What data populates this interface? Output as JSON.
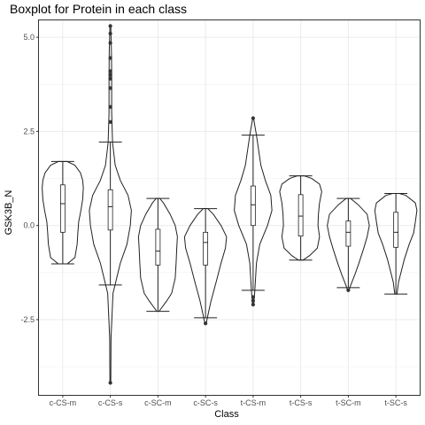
{
  "chart_data": {
    "type": "violin+boxplot",
    "title": "Boxplot for Protein in each class",
    "xlabel": "Class",
    "ylabel": "GSK3B_N",
    "categories": [
      "c-CS-m",
      "c-CS-s",
      "c-SC-m",
      "c-SC-s",
      "t-CS-m",
      "t-CS-s",
      "t-SC-m",
      "t-SC-s"
    ],
    "ylim": [
      -4.5,
      5.45
    ],
    "yticks": [
      -2.5,
      0.0,
      2.5,
      5.0
    ],
    "ytick_labels": [
      "-2.5",
      "0.0",
      "2.5",
      "5.0"
    ],
    "grid": true,
    "groups": [
      {
        "name": "c-CS-m",
        "whisker_min": -1.02,
        "q1": -0.18,
        "median": 0.58,
        "q3": 1.08,
        "whisker_max": 1.7,
        "outliers": [],
        "density": [
          [
            -1.02,
            0.2
          ],
          [
            -0.85,
            0.55
          ],
          [
            -0.5,
            0.65
          ],
          [
            -0.2,
            0.68
          ],
          [
            0.1,
            0.72
          ],
          [
            0.4,
            0.82
          ],
          [
            0.7,
            0.9
          ],
          [
            1.0,
            0.93
          ],
          [
            1.2,
            0.9
          ],
          [
            1.4,
            0.8
          ],
          [
            1.6,
            0.55
          ],
          [
            1.7,
            0.2
          ]
        ]
      },
      {
        "name": "c-CS-s",
        "whisker_min": -1.58,
        "q1": -0.12,
        "median": 0.5,
        "q3": 0.95,
        "whisker_max": 2.22,
        "outliers": [
          -4.18,
          2.75,
          3.15,
          3.65,
          3.9,
          4.0,
          4.1,
          4.45,
          4.85,
          5.1,
          5.3
        ],
        "density": [
          [
            -4.18,
            0.02
          ],
          [
            -3.0,
            0.03
          ],
          [
            -1.8,
            0.12
          ],
          [
            -1.0,
            0.45
          ],
          [
            -0.5,
            0.75
          ],
          [
            0.0,
            0.9
          ],
          [
            0.4,
            0.95
          ],
          [
            0.8,
            0.8
          ],
          [
            1.2,
            0.45
          ],
          [
            1.6,
            0.22
          ],
          [
            2.2,
            0.1
          ],
          [
            3.0,
            0.06
          ],
          [
            4.0,
            0.06
          ],
          [
            4.6,
            0.05
          ],
          [
            5.3,
            0.02
          ]
        ]
      },
      {
        "name": "c-SC-m",
        "whisker_min": -2.28,
        "q1": -1.05,
        "median": -0.68,
        "q3": -0.1,
        "whisker_max": 0.72,
        "outliers": [],
        "density": [
          [
            -2.28,
            0.05
          ],
          [
            -2.0,
            0.4
          ],
          [
            -1.8,
            0.62
          ],
          [
            -1.4,
            0.78
          ],
          [
            -1.0,
            0.82
          ],
          [
            -0.6,
            0.85
          ],
          [
            -0.3,
            0.88
          ],
          [
            0.0,
            0.78
          ],
          [
            0.3,
            0.55
          ],
          [
            0.6,
            0.25
          ],
          [
            0.72,
            0.08
          ]
        ]
      },
      {
        "name": "c-SC-s",
        "whisker_min": -2.45,
        "q1": -1.05,
        "median": -0.45,
        "q3": -0.18,
        "whisker_max": 0.45,
        "outliers": [
          -2.6
        ],
        "density": [
          [
            -2.6,
            0.03
          ],
          [
            -2.4,
            0.1
          ],
          [
            -2.0,
            0.25
          ],
          [
            -1.5,
            0.48
          ],
          [
            -1.0,
            0.7
          ],
          [
            -0.6,
            0.9
          ],
          [
            -0.3,
            0.95
          ],
          [
            0.0,
            0.7
          ],
          [
            0.3,
            0.35
          ],
          [
            0.45,
            0.1
          ]
        ]
      },
      {
        "name": "t-CS-m",
        "whisker_min": -1.72,
        "q1": 0.0,
        "median": 0.55,
        "q3": 1.05,
        "whisker_max": 2.4,
        "outliers": [
          -1.9,
          -2.0,
          -2.1,
          2.85
        ],
        "density": [
          [
            -2.1,
            0.03
          ],
          [
            -1.7,
            0.08
          ],
          [
            -1.0,
            0.15
          ],
          [
            -0.5,
            0.3
          ],
          [
            0.0,
            0.65
          ],
          [
            0.4,
            0.85
          ],
          [
            0.8,
            0.8
          ],
          [
            1.2,
            0.55
          ],
          [
            1.6,
            0.35
          ],
          [
            2.0,
            0.25
          ],
          [
            2.4,
            0.15
          ],
          [
            2.85,
            0.02
          ]
        ]
      },
      {
        "name": "t-CS-s",
        "whisker_min": -0.92,
        "q1": -0.28,
        "median": 0.25,
        "q3": 0.82,
        "whisker_max": 1.32,
        "outliers": [],
        "density": [
          [
            -0.92,
            0.1
          ],
          [
            -0.8,
            0.4
          ],
          [
            -0.6,
            0.75
          ],
          [
            -0.3,
            0.85
          ],
          [
            0.0,
            0.78
          ],
          [
            0.3,
            0.8
          ],
          [
            0.6,
            0.85
          ],
          [
            0.9,
            0.95
          ],
          [
            1.1,
            0.85
          ],
          [
            1.25,
            0.5
          ],
          [
            1.32,
            0.15
          ]
        ]
      },
      {
        "name": "t-SC-m",
        "whisker_min": -1.65,
        "q1": -0.55,
        "median": -0.18,
        "q3": 0.12,
        "whisker_max": 0.72,
        "outliers": [
          -1.72
        ],
        "density": [
          [
            -1.72,
            0.03
          ],
          [
            -1.6,
            0.1
          ],
          [
            -1.3,
            0.3
          ],
          [
            -1.0,
            0.48
          ],
          [
            -0.6,
            0.7
          ],
          [
            -0.3,
            0.85
          ],
          [
            0.0,
            0.95
          ],
          [
            0.3,
            0.85
          ],
          [
            0.55,
            0.45
          ],
          [
            0.72,
            0.1
          ]
        ]
      },
      {
        "name": "t-SC-s",
        "whisker_min": -1.82,
        "q1": -0.58,
        "median": -0.18,
        "q3": 0.35,
        "whisker_max": 0.85,
        "outliers": [],
        "density": [
          [
            -1.82,
            0.05
          ],
          [
            -1.5,
            0.12
          ],
          [
            -1.2,
            0.25
          ],
          [
            -0.9,
            0.38
          ],
          [
            -0.5,
            0.6
          ],
          [
            -0.2,
            0.8
          ],
          [
            0.1,
            0.88
          ],
          [
            0.4,
            0.95
          ],
          [
            0.6,
            0.88
          ],
          [
            0.8,
            0.45
          ],
          [
            0.85,
            0.15
          ]
        ]
      }
    ]
  }
}
